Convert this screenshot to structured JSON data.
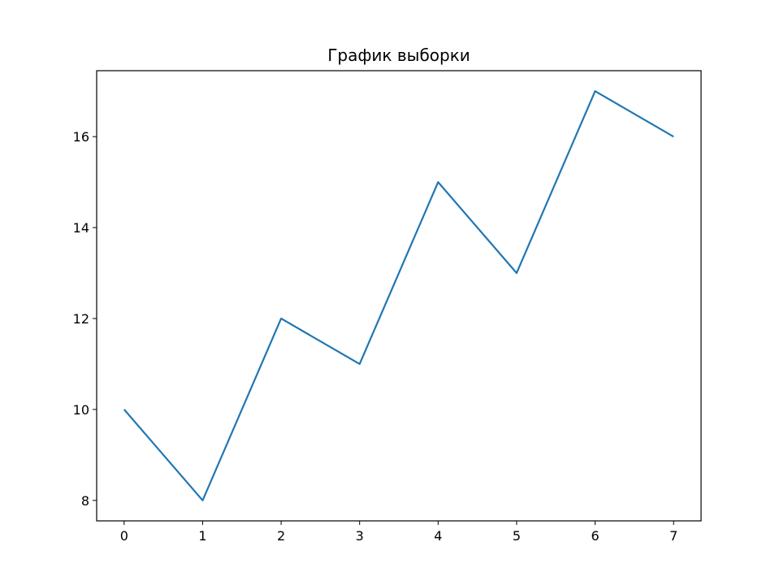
{
  "chart_data": {
    "type": "line",
    "title": "График выборки",
    "xlabel": "",
    "ylabel": "",
    "x": [
      0,
      1,
      2,
      3,
      4,
      5,
      6,
      7
    ],
    "series": [
      {
        "values": [
          10,
          8,
          12,
          11,
          15,
          13,
          17,
          16
        ],
        "color": "#1f77b4"
      }
    ],
    "xlim": [
      -0.35,
      7.35
    ],
    "ylim": [
      7.55,
      17.45
    ],
    "xticks": [
      0,
      1,
      2,
      3,
      4,
      5,
      6,
      7
    ],
    "yticks": [
      8,
      10,
      12,
      14,
      16
    ],
    "grid": false,
    "legend": "none"
  }
}
